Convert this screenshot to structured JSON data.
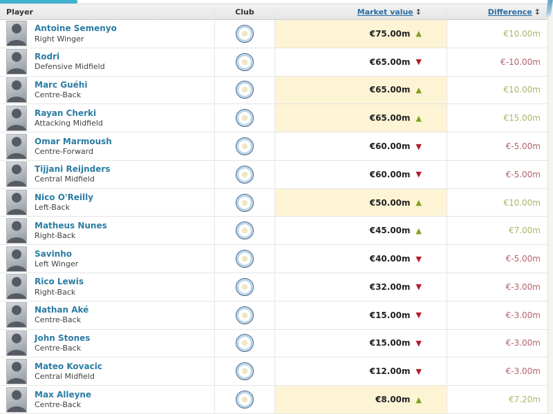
{
  "table": {
    "columns": {
      "player": "Player",
      "club": "Club",
      "market_value": "Market value",
      "difference": "Difference"
    },
    "icons": {
      "up": "▲",
      "down": "▼",
      "sort": "↕"
    },
    "club_badge": "Manchester City",
    "rows": [
      {
        "name": "Antoine Semenyo",
        "position": "Right Winger",
        "market_value": "€75.00m",
        "trend": "up",
        "highlight": true,
        "difference": "€10.00m",
        "diff_dir": "positive"
      },
      {
        "name": "Rodri",
        "position": "Defensive Midfield",
        "market_value": "€65.00m",
        "trend": "down",
        "highlight": false,
        "difference": "€-10.00m",
        "diff_dir": "negative"
      },
      {
        "name": "Marc Guéhi",
        "position": "Centre-Back",
        "market_value": "€65.00m",
        "trend": "up",
        "highlight": true,
        "difference": "€10.00m",
        "diff_dir": "positive"
      },
      {
        "name": "Rayan Cherki",
        "position": "Attacking Midfield",
        "market_value": "€65.00m",
        "trend": "up",
        "highlight": true,
        "difference": "€15.00m",
        "diff_dir": "positive"
      },
      {
        "name": "Omar Marmoush",
        "position": "Centre-Forward",
        "market_value": "€60.00m",
        "trend": "down",
        "highlight": false,
        "difference": "€-5.00m",
        "diff_dir": "negative"
      },
      {
        "name": "Tijjani Reijnders",
        "position": "Central Midfield",
        "market_value": "€60.00m",
        "trend": "down",
        "highlight": false,
        "difference": "€-5.00m",
        "diff_dir": "negative"
      },
      {
        "name": "Nico O'Reilly",
        "position": "Left-Back",
        "market_value": "€50.00m",
        "trend": "up",
        "highlight": true,
        "difference": "€10.00m",
        "diff_dir": "positive"
      },
      {
        "name": "Matheus Nunes",
        "position": "Right-Back",
        "market_value": "€45.00m",
        "trend": "up",
        "highlight": false,
        "difference": "€7.00m",
        "diff_dir": "positive"
      },
      {
        "name": "Savinho",
        "position": "Left Winger",
        "market_value": "€40.00m",
        "trend": "down",
        "highlight": false,
        "difference": "€-5.00m",
        "diff_dir": "negative"
      },
      {
        "name": "Rico Lewis",
        "position": "Right-Back",
        "market_value": "€32.00m",
        "trend": "down",
        "highlight": false,
        "difference": "€-3.00m",
        "diff_dir": "negative"
      },
      {
        "name": "Nathan Aké",
        "position": "Centre-Back",
        "market_value": "€15.00m",
        "trend": "down",
        "highlight": false,
        "difference": "€-3.00m",
        "diff_dir": "negative"
      },
      {
        "name": "John Stones",
        "position": "Centre-Back",
        "market_value": "€15.00m",
        "trend": "down",
        "highlight": false,
        "difference": "€-3.00m",
        "diff_dir": "negative"
      },
      {
        "name": "Mateo Kovacic",
        "position": "Central Midfield",
        "market_value": "€12.00m",
        "trend": "down",
        "highlight": false,
        "difference": "€-3.00m",
        "diff_dir": "negative"
      },
      {
        "name": "Max Alleyne",
        "position": "Centre-Back",
        "market_value": "€8.00m",
        "trend": "up",
        "highlight": true,
        "difference": "€7.20m",
        "diff_dir": "positive"
      }
    ]
  },
  "colors": {
    "accent_tab": "#41b1d3",
    "link": "#2a6ea6",
    "name": "#2a7ca3",
    "positive": "#7fa11c",
    "negative": "#b11d28",
    "diff_positive": "#a9b566",
    "diff_negative": "#b4606b",
    "highlight_bg": "#fdf4d5"
  }
}
